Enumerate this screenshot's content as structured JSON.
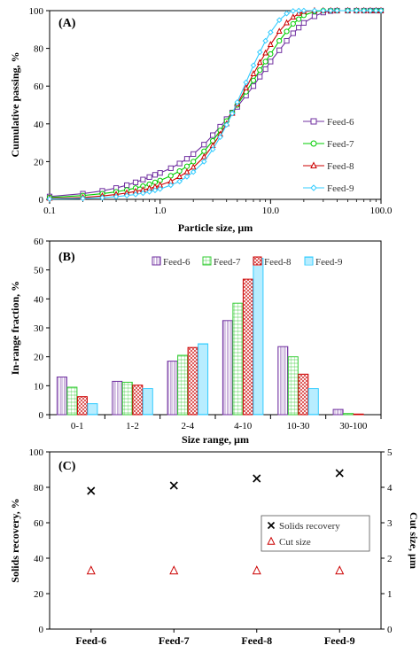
{
  "chart_data": [
    {
      "panel": "(A)",
      "type": "line",
      "xlabel": "Particle size, µm",
      "ylabel": "Cumulative passing, %",
      "xscale": "log",
      "xlim": [
        0.1,
        100
      ],
      "ylim": [
        0,
        100
      ],
      "xticks": [
        "0.1",
        "1.0",
        "10.0",
        "100.0"
      ],
      "yticks": [
        "0",
        "20",
        "40",
        "60",
        "80",
        "100"
      ],
      "legend_position": "right",
      "series": [
        {
          "name": "Feed-6",
          "color": "#7030a0",
          "marker": "square",
          "x": [
            0.1,
            0.2,
            0.3,
            0.4,
            0.5,
            0.6,
            0.7,
            0.8,
            0.9,
            1.0,
            1.25,
            1.5,
            1.75,
            2.0,
            2.5,
            3.0,
            3.5,
            4.0,
            4.5,
            5.0,
            6.0,
            7.0,
            8.0,
            9.0,
            10.0,
            12.0,
            14.0,
            16.0,
            18.0,
            20.0,
            25.0,
            30.0,
            35.0,
            40.0,
            50.0,
            60.0,
            70.0,
            80.0,
            90.0,
            100.0
          ],
          "y": [
            1.5,
            3,
            4.5,
            6,
            7.5,
            9,
            10.5,
            11.8,
            13,
            14,
            16.5,
            19,
            21.5,
            24,
            29,
            34,
            38.5,
            42.5,
            46,
            49,
            55,
            60,
            65,
            69,
            73,
            79,
            84,
            88,
            91,
            93.5,
            97,
            99,
            99.8,
            100,
            100,
            100,
            100,
            100,
            100,
            100
          ]
        },
        {
          "name": "Feed-7",
          "color": "#00cc00",
          "marker": "circle",
          "x": [
            0.1,
            0.2,
            0.3,
            0.4,
            0.5,
            0.6,
            0.7,
            0.8,
            0.9,
            1.0,
            1.25,
            1.5,
            1.75,
            2.0,
            2.5,
            3.0,
            3.5,
            4.0,
            4.5,
            5.0,
            6.0,
            7.0,
            8.0,
            9.0,
            10.0,
            12.0,
            14.0,
            16.0,
            18.0,
            20.0,
            25.0,
            30.0,
            35.0,
            40.0,
            50.0,
            60.0,
            70.0,
            80.0,
            90.0,
            100.0
          ],
          "y": [
            1,
            2,
            3,
            4,
            5,
            6,
            7,
            8,
            9,
            10,
            12.5,
            15,
            17.5,
            20,
            25.5,
            31,
            36.5,
            41.5,
            46,
            50,
            57,
            63,
            68.5,
            73,
            77,
            84,
            89,
            93,
            95.5,
            97.5,
            99.5,
            100,
            100,
            100,
            100,
            100,
            100,
            100,
            100,
            100
          ]
        },
        {
          "name": "Feed-8",
          "color": "#cc0000",
          "marker": "triangle",
          "x": [
            0.1,
            0.2,
            0.3,
            0.4,
            0.5,
            0.6,
            0.7,
            0.8,
            0.9,
            1.0,
            1.25,
            1.5,
            1.75,
            2.0,
            2.5,
            3.0,
            3.5,
            4.0,
            4.5,
            5.0,
            6.0,
            7.0,
            8.0,
            9.0,
            10.0,
            12.0,
            14.0,
            16.0,
            18.0,
            20.0,
            25.0,
            30.0,
            35.0,
            40.0,
            50.0,
            60.0,
            70.0,
            80.0,
            90.0,
            100.0
          ],
          "y": [
            0.5,
            1,
            1.8,
            2.6,
            3.4,
            4.2,
            5,
            5.8,
            6.6,
            7.5,
            9.5,
            12,
            14.5,
            17,
            22.5,
            28.5,
            34.5,
            40,
            45.5,
            50.5,
            59,
            66.5,
            72.5,
            77.5,
            82,
            89,
            93.5,
            96.5,
            98.5,
            99.5,
            100,
            100,
            100,
            100,
            100,
            100,
            100,
            100,
            100,
            100
          ]
        },
        {
          "name": "Feed-9",
          "color": "#33ccff",
          "marker": "diamond",
          "x": [
            0.1,
            0.2,
            0.3,
            0.4,
            0.5,
            0.6,
            0.7,
            0.8,
            0.9,
            1.0,
            1.25,
            1.5,
            1.75,
            2.0,
            2.5,
            3.0,
            3.5,
            4.0,
            4.5,
            5.0,
            6.0,
            7.0,
            8.0,
            9.0,
            10.0,
            12.0,
            14.0,
            16.0,
            18.0,
            20.0,
            25.0,
            30.0,
            35.0,
            40.0,
            50.0,
            60.0,
            70.0,
            80.0,
            90.0,
            100.0
          ],
          "y": [
            0.2,
            0.5,
            0.9,
            1.4,
            2,
            2.6,
            3.3,
            4,
            4.8,
            5.5,
            7.5,
            9.5,
            12,
            14.5,
            20,
            26.5,
            33,
            39.5,
            45.5,
            51.5,
            62,
            71,
            78,
            84,
            88.5,
            95,
            98.5,
            99.8,
            100,
            100,
            100,
            100,
            100,
            100,
            100,
            100,
            100,
            100,
            100,
            100
          ]
        }
      ]
    },
    {
      "panel": "(B)",
      "type": "bar",
      "xlabel": "Size range, µm",
      "ylabel": "In-range fraction, %",
      "ylim": [
        0,
        60
      ],
      "yticks": [
        "0",
        "10",
        "20",
        "30",
        "40",
        "50",
        "60"
      ],
      "categories": [
        "0-1",
        "1-2",
        "2-4",
        "4-10",
        "10-30",
        "30-100"
      ],
      "legend_position": "top",
      "series": [
        {
          "name": "Feed-6",
          "color": "#7030a0",
          "values": [
            13,
            11.5,
            18.5,
            32.5,
            23.5,
            1.8
          ]
        },
        {
          "name": "Feed-7",
          "color": "#33cc33",
          "values": [
            9.5,
            11.2,
            20.5,
            38.5,
            20,
            0.4
          ]
        },
        {
          "name": "Feed-8",
          "color": "#cc0000",
          "values": [
            6.2,
            10.2,
            23.2,
            46.8,
            14,
            0.2
          ]
        },
        {
          "name": "Feed-9",
          "color": "#33ccff",
          "values": [
            3.8,
            9,
            24.5,
            54,
            9,
            0
          ]
        }
      ]
    },
    {
      "panel": "(C)",
      "type": "scatter",
      "xlabel": "",
      "ylabel": "Solids recovery, %",
      "y2label": "Cut size, µm",
      "categories": [
        "Feed-6",
        "Feed-7",
        "Feed-8",
        "Feed-9"
      ],
      "ylim": [
        0,
        100
      ],
      "y2lim": [
        0,
        5
      ],
      "yticks": [
        "0",
        "20",
        "40",
        "60",
        "80",
        "100"
      ],
      "y2ticks": [
        "0",
        "1",
        "2",
        "3",
        "4",
        "5"
      ],
      "legend_position": "right",
      "series": [
        {
          "name": "Solids recovery",
          "axis": "left",
          "color": "#000000",
          "marker": "x",
          "values": [
            78,
            81,
            85,
            88
          ]
        },
        {
          "name": "Cut size",
          "axis": "right",
          "color": "#cc0000",
          "marker": "triangle",
          "values": [
            1.65,
            1.65,
            1.65,
            1.65
          ]
        }
      ]
    }
  ]
}
